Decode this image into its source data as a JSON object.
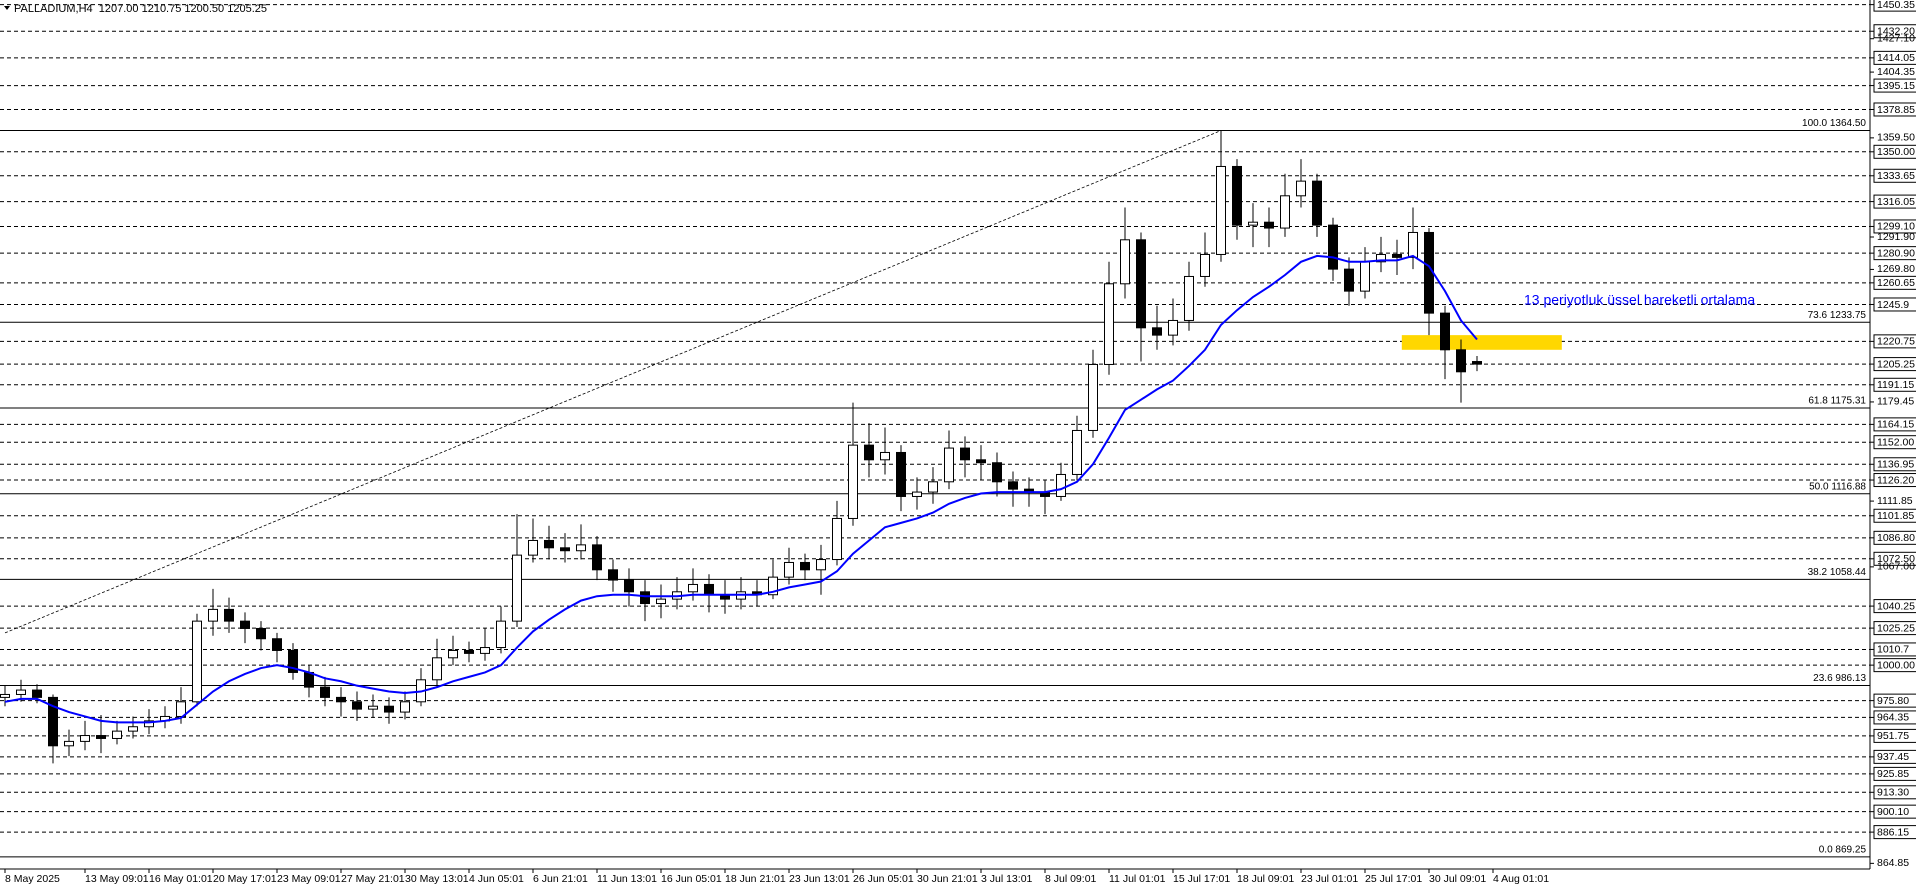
{
  "chart_data": {
    "type": "candlestick",
    "title": "PALLADIUM,H4  1207.00 1210.75 1200.50 1205.25",
    "open": [
      978,
      980,
      983,
      978,
      945,
      948,
      952,
      950,
      955,
      958,
      962,
      965,
      975,
      1030,
      1038,
      1030,
      1025,
      1018,
      1010,
      995,
      985,
      978,
      975,
      970,
      972,
      968,
      975,
      990,
      1005,
      1010,
      1008,
      1012,
      1030,
      1075,
      1085,
      1080,
      1078,
      1082,
      1065,
      1058,
      1050,
      1042,
      1045,
      1050,
      1055,
      1048,
      1045,
      1050,
      1048,
      1060,
      1070,
      1065,
      1072,
      1100,
      1150,
      1140,
      1145,
      1115,
      1118,
      1125,
      1148,
      1140,
      1138,
      1125,
      1120,
      1118,
      1115,
      1130,
      1160,
      1205,
      1260,
      1290,
      1230,
      1225,
      1235,
      1265,
      1280,
      1340,
      1300,
      1302,
      1298,
      1320,
      1330,
      1300,
      1270,
      1255,
      1275,
      1280,
      1278,
      1295,
      1240,
      1215,
      1207
    ],
    "high": [
      986,
      990,
      987,
      980,
      956,
      962,
      966,
      962,
      965,
      970,
      972,
      985,
      1035,
      1052,
      1046,
      1036,
      1030,
      1022,
      1015,
      1000,
      992,
      985,
      982,
      980,
      978,
      982,
      998,
      1018,
      1020,
      1016,
      1025,
      1040,
      1103,
      1100,
      1095,
      1090,
      1096,
      1088,
      1072,
      1066,
      1058,
      1055,
      1060,
      1066,
      1062,
      1058,
      1060,
      1058,
      1072,
      1080,
      1076,
      1082,
      1112,
      1179,
      1165,
      1162,
      1150,
      1128,
      1135,
      1160,
      1156,
      1150,
      1145,
      1132,
      1128,
      1126,
      1138,
      1170,
      1215,
      1275,
      1312,
      1295,
      1245,
      1250,
      1275,
      1295,
      1364.5,
      1345,
      1315,
      1312,
      1335,
      1345,
      1335,
      1305,
      1278,
      1285,
      1292,
      1290,
      1312,
      1298,
      1245,
      1222,
      1210.75
    ],
    "low": [
      972,
      975,
      974,
      933,
      938,
      942,
      940,
      946,
      950,
      953,
      957,
      960,
      972,
      1020,
      1022,
      1015,
      1010,
      1002,
      990,
      978,
      972,
      965,
      962,
      964,
      960,
      963,
      972,
      985,
      1000,
      1002,
      1003,
      1008,
      1026,
      1070,
      1072,
      1070,
      1072,
      1058,
      1050,
      1040,
      1030,
      1032,
      1038,
      1044,
      1036,
      1035,
      1038,
      1040,
      1045,
      1055,
      1058,
      1048,
      1068,
      1095,
      1128,
      1130,
      1105,
      1106,
      1110,
      1120,
      1128,
      1126,
      1115,
      1108,
      1108,
      1103,
      1112,
      1126,
      1155,
      1198,
      1250,
      1207,
      1215,
      1218,
      1228,
      1258,
      1275,
      1290,
      1285,
      1285,
      1292,
      1312,
      1292,
      1262,
      1245,
      1250,
      1268,
      1266,
      1270,
      1225,
      1195,
      1179,
      1200.5
    ],
    "close": [
      980,
      983,
      978,
      945,
      948,
      952,
      950,
      955,
      958,
      962,
      965,
      975,
      1030,
      1038,
      1030,
      1025,
      1018,
      1010,
      995,
      985,
      978,
      975,
      970,
      972,
      968,
      975,
      990,
      1005,
      1010,
      1008,
      1012,
      1030,
      1075,
      1085,
      1080,
      1078,
      1082,
      1065,
      1058,
      1050,
      1042,
      1045,
      1050,
      1055,
      1048,
      1045,
      1050,
      1048,
      1060,
      1070,
      1065,
      1072,
      1100,
      1150,
      1140,
      1145,
      1115,
      1118,
      1125,
      1148,
      1140,
      1138,
      1125,
      1120,
      1118,
      1115,
      1130,
      1160,
      1205,
      1260,
      1290,
      1230,
      1225,
      1235,
      1265,
      1280,
      1340,
      1300,
      1302,
      1298,
      1320,
      1330,
      1300,
      1270,
      1255,
      1275,
      1280,
      1278,
      1295,
      1240,
      1215,
      1200,
      1205.25
    ],
    "ema": {
      "color": "#0000ff",
      "values": [
        975,
        977,
        977,
        972,
        968,
        965,
        962,
        961,
        961,
        961,
        962,
        964,
        973,
        982,
        989,
        994,
        998,
        1000,
        998,
        995,
        991,
        989,
        986,
        984,
        982,
        981,
        982,
        985,
        989,
        992,
        995,
        1000,
        1012,
        1023,
        1031,
        1038,
        1044,
        1047,
        1048,
        1048,
        1047,
        1047,
        1047,
        1048,
        1048,
        1048,
        1048,
        1048,
        1050,
        1053,
        1055,
        1057,
        1064,
        1076,
        1085,
        1094,
        1097,
        1100,
        1104,
        1110,
        1114,
        1117,
        1118,
        1118,
        1118,
        1118,
        1120,
        1125,
        1137,
        1155,
        1174,
        1181,
        1188,
        1194,
        1204,
        1215,
        1232,
        1242,
        1251,
        1258,
        1266,
        1275,
        1279,
        1278,
        1275,
        1275,
        1276,
        1276,
        1279,
        1272,
        1255,
        1235,
        1222
      ]
    },
    "annotation": "13 periyotluk üssel hareketli ortalama",
    "xticks": [
      {
        "value": 0,
        "label": "8 May 2025"
      },
      {
        "value": 5,
        "label": "13 May 09:01"
      },
      {
        "value": 9,
        "label": "16 May 01:01"
      },
      {
        "value": 13,
        "label": "20 May 17:01"
      },
      {
        "value": 17,
        "label": "23 May 09:01"
      },
      {
        "value": 21,
        "label": "27 May 21:01"
      },
      {
        "value": 25,
        "label": "30 May 13:01"
      },
      {
        "value": 29,
        "label": "4 Jun 05:01"
      },
      {
        "value": 33,
        "label": "6 Jun 21:01"
      },
      {
        "value": 37,
        "label": "11 Jun 13:01"
      },
      {
        "value": 41,
        "label": "16 Jun 05:01"
      },
      {
        "value": 45,
        "label": "18 Jun 21:01"
      },
      {
        "value": 49,
        "label": "23 Jun 13:01"
      },
      {
        "value": 53,
        "label": "26 Jun 05:01"
      },
      {
        "value": 57,
        "label": "30 Jun 21:01"
      },
      {
        "value": 61,
        "label": "3 Jul 13:01"
      },
      {
        "value": 65,
        "label": "8 Jul 09:01"
      },
      {
        "value": 69,
        "label": "11 Jul 01:01"
      },
      {
        "value": 73,
        "label": "15 Jul 17:01"
      },
      {
        "value": 77,
        "label": "18 Jul 09:01"
      },
      {
        "value": 81,
        "label": "23 Jul 01:01"
      },
      {
        "value": 85,
        "label": "25 Jul 17:01"
      },
      {
        "value": 89,
        "label": "30 Jul 09:01"
      },
      {
        "value": 93,
        "label": "4 Aug 01:01"
      }
    ],
    "ylim": [
      861,
      1453.5
    ],
    "yticks": [
      {
        "value": 1427.1,
        "label": "1427.10"
      },
      1404.35,
      {
        "value": 1359.5,
        "label": "1359.50"
      },
      {
        "value": 1291.9,
        "label": "1291.90"
      },
      {
        "value": 1269.8,
        "label": "1269.80"
      },
      1179.45,
      1111.85,
      {
        "value": 1067,
        "label": "1067.00"
      },
      864.85
    ],
    "levels": [
      1450.35,
      {
        "value": 1432.2,
        "label": "1432.20"
      },
      1414.05,
      1395.15,
      1378.85,
      {
        "value": 1350,
        "label": "1350.00"
      },
      1333.65,
      1316.05,
      {
        "value": 1299.1,
        "label": "1299.10"
      },
      {
        "value": 1280.9,
        "label": "1280.90"
      },
      1260.65,
      1245.9,
      1220.75,
      1205.25,
      1191.15,
      1164.15,
      {
        "value": 1152,
        "label": "1152.00"
      },
      1136.95,
      {
        "value": 1126.2,
        "label": "1126.20"
      },
      1101.85,
      {
        "value": 1086.8,
        "label": "1086.80"
      },
      {
        "value": 1072.5,
        "label": "1072.50"
      },
      1040.25,
      1025.25,
      1010.7,
      {
        "value": 1000,
        "label": "1000.00"
      },
      {
        "value": 975.8,
        "label": "975.80"
      },
      964.35,
      951.75,
      937.45,
      925.85,
      {
        "value": 913.3,
        "label": "913.30"
      },
      {
        "value": 900.1,
        "label": "900.10"
      },
      886.15
    ],
    "fib": [
      {
        "value": 1364.5,
        "label": "100.0 1364.50"
      },
      {
        "value": 1233.75,
        "label": "73.6 1233.75"
      },
      {
        "value": 1175.31,
        "label": "61.8 1175.31"
      },
      {
        "value": 1116.88,
        "label": "50.0 1116.88"
      },
      {
        "value": 1058.44,
        "label": "38.2 1058.44"
      },
      {
        "value": 986.13,
        "label": "23.6 986.13"
      },
      {
        "value": 869.25,
        "label": "0.0 869.25"
      }
    ],
    "trendline": [
      [
        0,
        1022
      ],
      [
        76,
        1364.5
      ]
    ],
    "highlight": {
      "x": [
        87.3,
        97.3
      ],
      "y": [
        1215,
        1225
      ],
      "color": "#ffd700"
    }
  }
}
